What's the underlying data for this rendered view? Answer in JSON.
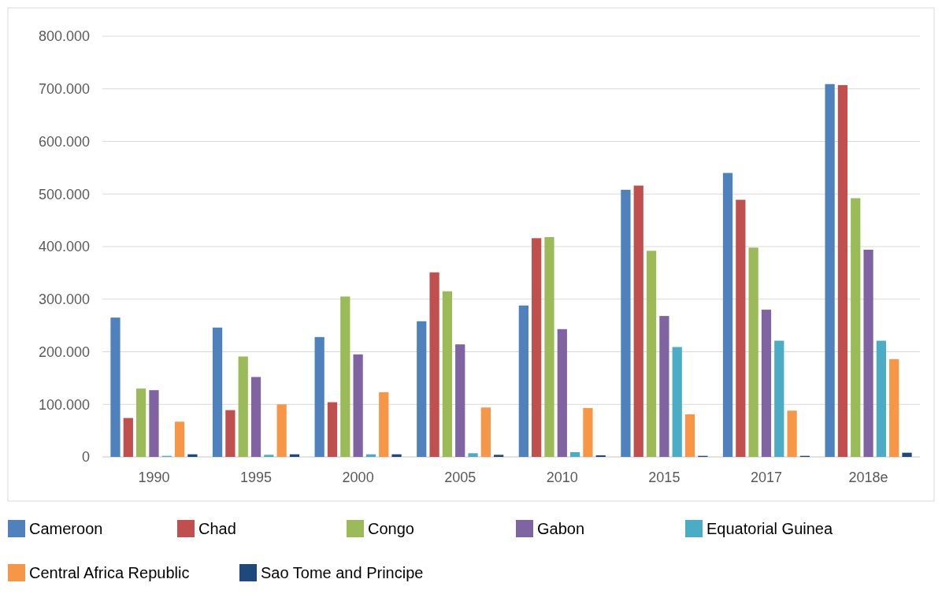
{
  "chart_data": {
    "type": "bar",
    "categories": [
      "1990",
      "1995",
      "2000",
      "2005",
      "2010",
      "2015",
      "2017",
      "2018e"
    ],
    "series": [
      {
        "name": "Cameroon",
        "color": "#4f81bd",
        "values": [
          265000,
          246000,
          228000,
          258000,
          288000,
          508000,
          540000,
          709000
        ]
      },
      {
        "name": "Chad",
        "color": "#c0504d",
        "values": [
          74000,
          89000,
          104000,
          351000,
          416000,
          516000,
          489000,
          707000
        ]
      },
      {
        "name": "Congo",
        "color": "#9bbb59",
        "values": [
          130000,
          191000,
          305000,
          315000,
          418000,
          392000,
          398000,
          492000
        ]
      },
      {
        "name": "Gabon",
        "color": "#8064a2",
        "values": [
          127000,
          152000,
          195000,
          214000,
          243000,
          268000,
          280000,
          394000
        ]
      },
      {
        "name": "Equatorial Guinea",
        "color": "#4bacc6",
        "values": [
          2000,
          4000,
          5000,
          7000,
          9000,
          209000,
          221000,
          221000
        ]
      },
      {
        "name": "Central Africa Republic",
        "color": "#f79646",
        "values": [
          67000,
          100000,
          123000,
          94000,
          93000,
          81000,
          88000,
          186000
        ]
      },
      {
        "name": "Sao Tome and Principe",
        "color": "#1f497d",
        "values": [
          5000,
          5000,
          5000,
          4000,
          3000,
          2000,
          2000,
          8000
        ]
      }
    ],
    "ylim": [
      0,
      800000
    ],
    "yticks": [
      {
        "value": 0,
        "label": "0"
      },
      {
        "value": 100000,
        "label": "100.000"
      },
      {
        "value": 200000,
        "label": "200.000"
      },
      {
        "value": 300000,
        "label": "300.000"
      },
      {
        "value": 400000,
        "label": "400.000"
      },
      {
        "value": 500000,
        "label": "500.000"
      },
      {
        "value": 600000,
        "label": "600.000"
      },
      {
        "value": 700000,
        "label": "700.000"
      },
      {
        "value": 800000,
        "label": "800.000"
      }
    ],
    "grid": "y",
    "legend": "bottom"
  }
}
